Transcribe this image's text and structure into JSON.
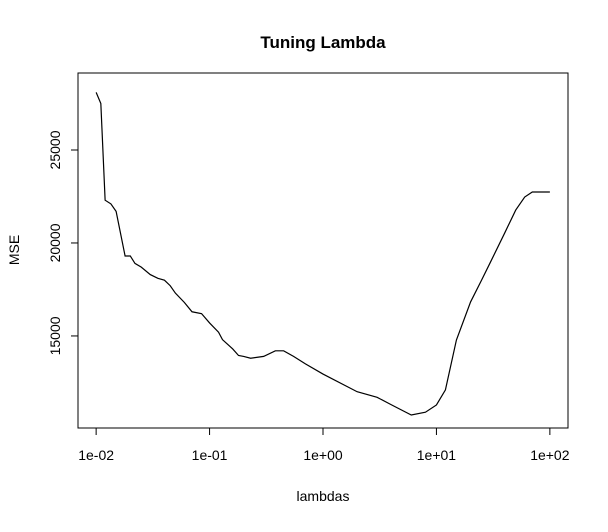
{
  "chart_data": {
    "type": "line",
    "title": "Tuning Lambda",
    "x_label": "lambdas",
    "y_label": "MSE",
    "x_log": true,
    "color": "#000000",
    "x": [
      0.01,
      0.011,
      0.012,
      0.0135,
      0.015,
      0.018,
      0.02,
      0.022,
      0.025,
      0.03,
      0.035,
      0.04,
      0.045,
      0.05,
      0.06,
      0.07,
      0.085,
      0.1,
      0.12,
      0.13,
      0.16,
      0.18,
      0.2,
      0.23,
      0.3,
      0.38,
      0.45,
      0.55,
      0.7,
      1,
      2,
      3,
      4,
      6,
      8,
      10,
      12,
      15,
      20,
      25,
      30,
      40,
      50,
      60,
      70,
      100
    ],
    "values": [
      28100,
      27500,
      22300,
      22100,
      21700,
      19300,
      19300,
      18900,
      18700,
      18300,
      18100,
      18000,
      17700,
      17300,
      16800,
      16300,
      16200,
      15700,
      15200,
      14800,
      14300,
      13950,
      13900,
      13800,
      13900,
      14200,
      14200,
      13900,
      13500,
      12950,
      12000,
      11700,
      11300,
      10750,
      10900,
      11290,
      12100,
      14780,
      16830,
      18000,
      18980,
      20540,
      21770,
      22470,
      22740,
      22740
    ],
    "xlim": [
      0.00692,
      144.5
    ],
    "xticks": [
      {
        "value": 0.01,
        "label": "1e-02"
      },
      {
        "value": 0.1,
        "label": "1e-01"
      },
      {
        "value": 1,
        "label": "1e+00"
      },
      {
        "value": 10,
        "label": "1e+01"
      },
      {
        "value": 100,
        "label": "1e+02"
      }
    ],
    "ylim": [
      10050,
      29140
    ],
    "yticks": [
      15000,
      20000,
      25000
    ]
  }
}
